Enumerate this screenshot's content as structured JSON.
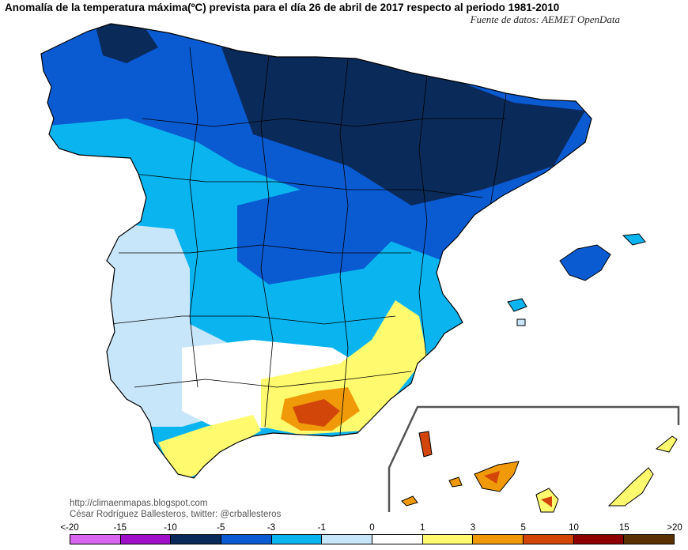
{
  "title": "Anomalía de la temperatura máxima(ºC) prevista para el día 26 de abril de 2017 respecto al periodo 1981-2010",
  "source": "Fuente de datos: AEMET OpenData",
  "credits": {
    "url": "http://climaenmapas.blogspot.com",
    "author": "César Rodríguez Ballesteros, twitter: @crballesteros"
  },
  "legend": {
    "ticks": [
      "<-20",
      "-15",
      "-10",
      "-5",
      "-3",
      "-1",
      "0",
      "1",
      "3",
      "5",
      "10",
      "15",
      ">20"
    ],
    "colors": [
      "#d966f0",
      "#a010c8",
      "#0a2a5a",
      "#0a5ad2",
      "#0ab4ee",
      "#c8e6fa",
      "#ffffff",
      "#fffa6e",
      "#f09a0a",
      "#d2460a",
      "#8c0000",
      "#5a3200"
    ]
  }
}
